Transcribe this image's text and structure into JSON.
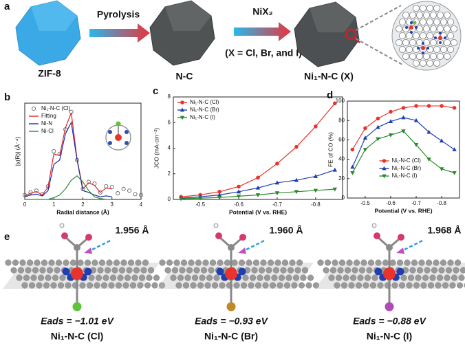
{
  "panel_a": {
    "label": "a",
    "steps": [
      "ZIF-8",
      "N-C",
      "Ni₁-N-C (X)"
    ],
    "arrows": [
      "Pyrolysis",
      "NiX₂",
      "(X = Cl, Br, and I)"
    ]
  },
  "chart_data": [
    {
      "type": "line",
      "panel_label": "b",
      "xlabel": "Radial distance (Å)",
      "ylabel": "|χ(R)| (Å⁻⁴)",
      "x": [
        0,
        0.2,
        0.4,
        0.6,
        0.8,
        1.0,
        1.2,
        1.4,
        1.6,
        1.8,
        2.0,
        2.2,
        2.4,
        2.6,
        2.8,
        3.0,
        3.2,
        3.4,
        3.6,
        3.8,
        4.0
      ],
      "xlim": [
        0,
        4
      ],
      "xticks": [
        0,
        1,
        2,
        3,
        4
      ],
      "ylim": [
        0,
        1.1
      ],
      "legend": "upper left",
      "series": [
        {
          "name": "Ni₁-N-C (Cl)",
          "color": "#666666",
          "marker": "open-circle",
          "line": false,
          "values": [
            0.05,
            0.08,
            0.1,
            0.06,
            0.15,
            0.55,
            0.52,
            0.8,
            1.0,
            0.45,
            0.12,
            0.2,
            0.18,
            0.08,
            0.15,
            0.14,
            0.07,
            0.12,
            0.1,
            0.06,
            0.05
          ]
        },
        {
          "name": "Fitting",
          "color": "#e0242a",
          "line": true,
          "values": [
            0.04,
            0.07,
            0.09,
            0.05,
            0.14,
            0.52,
            0.5,
            0.82,
            0.99,
            0.46,
            0.12,
            0.19,
            0.16,
            0.08,
            0.13,
            0.12,
            null,
            null,
            null,
            null,
            null
          ]
        },
        {
          "name": "Ni-N",
          "color": "#1f2fa0",
          "line": true,
          "values": [
            0.03,
            0.05,
            0.06,
            0.04,
            0.1,
            0.4,
            0.45,
            0.75,
            0.88,
            0.45,
            0.1,
            0.08,
            0.05,
            0.03,
            0.04,
            0.03,
            null,
            null,
            null,
            null,
            null
          ]
        },
        {
          "name": "Ni-Cl",
          "color": "#2a8a2a",
          "line": true,
          "values": [
            0,
            0,
            0,
            0,
            0,
            0.02,
            0.05,
            0.12,
            0.22,
            0.27,
            0.2,
            0.1,
            0.03,
            0.01,
            0,
            0,
            null,
            null,
            null,
            null,
            null
          ]
        }
      ]
    },
    {
      "type": "line",
      "panel_label": "c",
      "xlabel": "Potential (V vs. RHE)",
      "ylabel": "JCO (mA·cm⁻²)",
      "x": [
        -0.45,
        -0.5,
        -0.55,
        -0.6,
        -0.65,
        -0.7,
        -0.75,
        -0.8,
        -0.85
      ],
      "xlim": [
        -0.43,
        -0.87
      ],
      "xticks": [
        -0.5,
        -0.6,
        -0.7,
        -0.8
      ],
      "ylim": [
        0,
        8
      ],
      "yticks": [
        0,
        2,
        4,
        6,
        8
      ],
      "legend": "upper left",
      "series": [
        {
          "name": "Ni₁-N-C (Cl)",
          "color": "#e8342c",
          "marker": "circle",
          "line": true,
          "values": [
            0.2,
            0.35,
            0.6,
            1.0,
            1.7,
            2.8,
            4.1,
            5.7,
            7.5
          ]
        },
        {
          "name": "Ni₁-N-C (Br)",
          "color": "#1f3fb0",
          "marker": "triangle-up",
          "line": true,
          "values": [
            0.1,
            0.2,
            0.35,
            0.6,
            0.9,
            1.3,
            1.5,
            1.8,
            2.3
          ]
        },
        {
          "name": "Ni₁-N-C (I)",
          "color": "#2a8a2a",
          "marker": "triangle-down",
          "line": true,
          "values": [
            0.05,
            0.1,
            0.15,
            0.25,
            0.35,
            0.5,
            0.6,
            0.7,
            0.8
          ]
        }
      ]
    },
    {
      "type": "line",
      "panel_label": "d",
      "xlabel": "Potential (V vs. RHE)",
      "ylabel": "FE of CO (%)",
      "x": [
        -0.45,
        -0.5,
        -0.55,
        -0.6,
        -0.65,
        -0.7,
        -0.75,
        -0.8,
        -0.85
      ],
      "xlim": [
        -0.43,
        -0.87
      ],
      "xticks": [
        -0.5,
        -0.6,
        -0.7,
        -0.8
      ],
      "ylim": [
        0,
        100
      ],
      "yticks": [
        0,
        20,
        40,
        60,
        80,
        100
      ],
      "legend": "lower center",
      "series": [
        {
          "name": "Ni₁-N-C (Cl)",
          "color": "#e8342c",
          "marker": "circle",
          "line": true,
          "values": [
            50,
            72,
            82,
            89,
            93,
            95,
            95,
            95,
            93
          ]
        },
        {
          "name": "Ni₁-N-C (Br)",
          "color": "#1f3fb0",
          "marker": "triangle-up",
          "line": true,
          "values": [
            32,
            62,
            73,
            79,
            83,
            80,
            68,
            59,
            50
          ]
        },
        {
          "name": "Ni₁-N-C (I)",
          "color": "#2a8a2a",
          "marker": "triangle-down",
          "line": true,
          "values": [
            26,
            50,
            61,
            65,
            69,
            55,
            40,
            30,
            26
          ]
        }
      ]
    }
  ],
  "panel_e": {
    "label": "e",
    "structures": [
      {
        "bond": "1.956 Å",
        "energy": "Eads = −1.01 eV",
        "name": "Ni₁-N-C (Cl)"
      },
      {
        "bond": "1.960 Å",
        "energy": "Eads = −0.93 eV",
        "name": "Ni₁-N-C (Br)"
      },
      {
        "bond": "1.968 Å",
        "energy": "Eads = −0.88 eV",
        "name": "Ni₁-N-C (I)"
      }
    ]
  }
}
